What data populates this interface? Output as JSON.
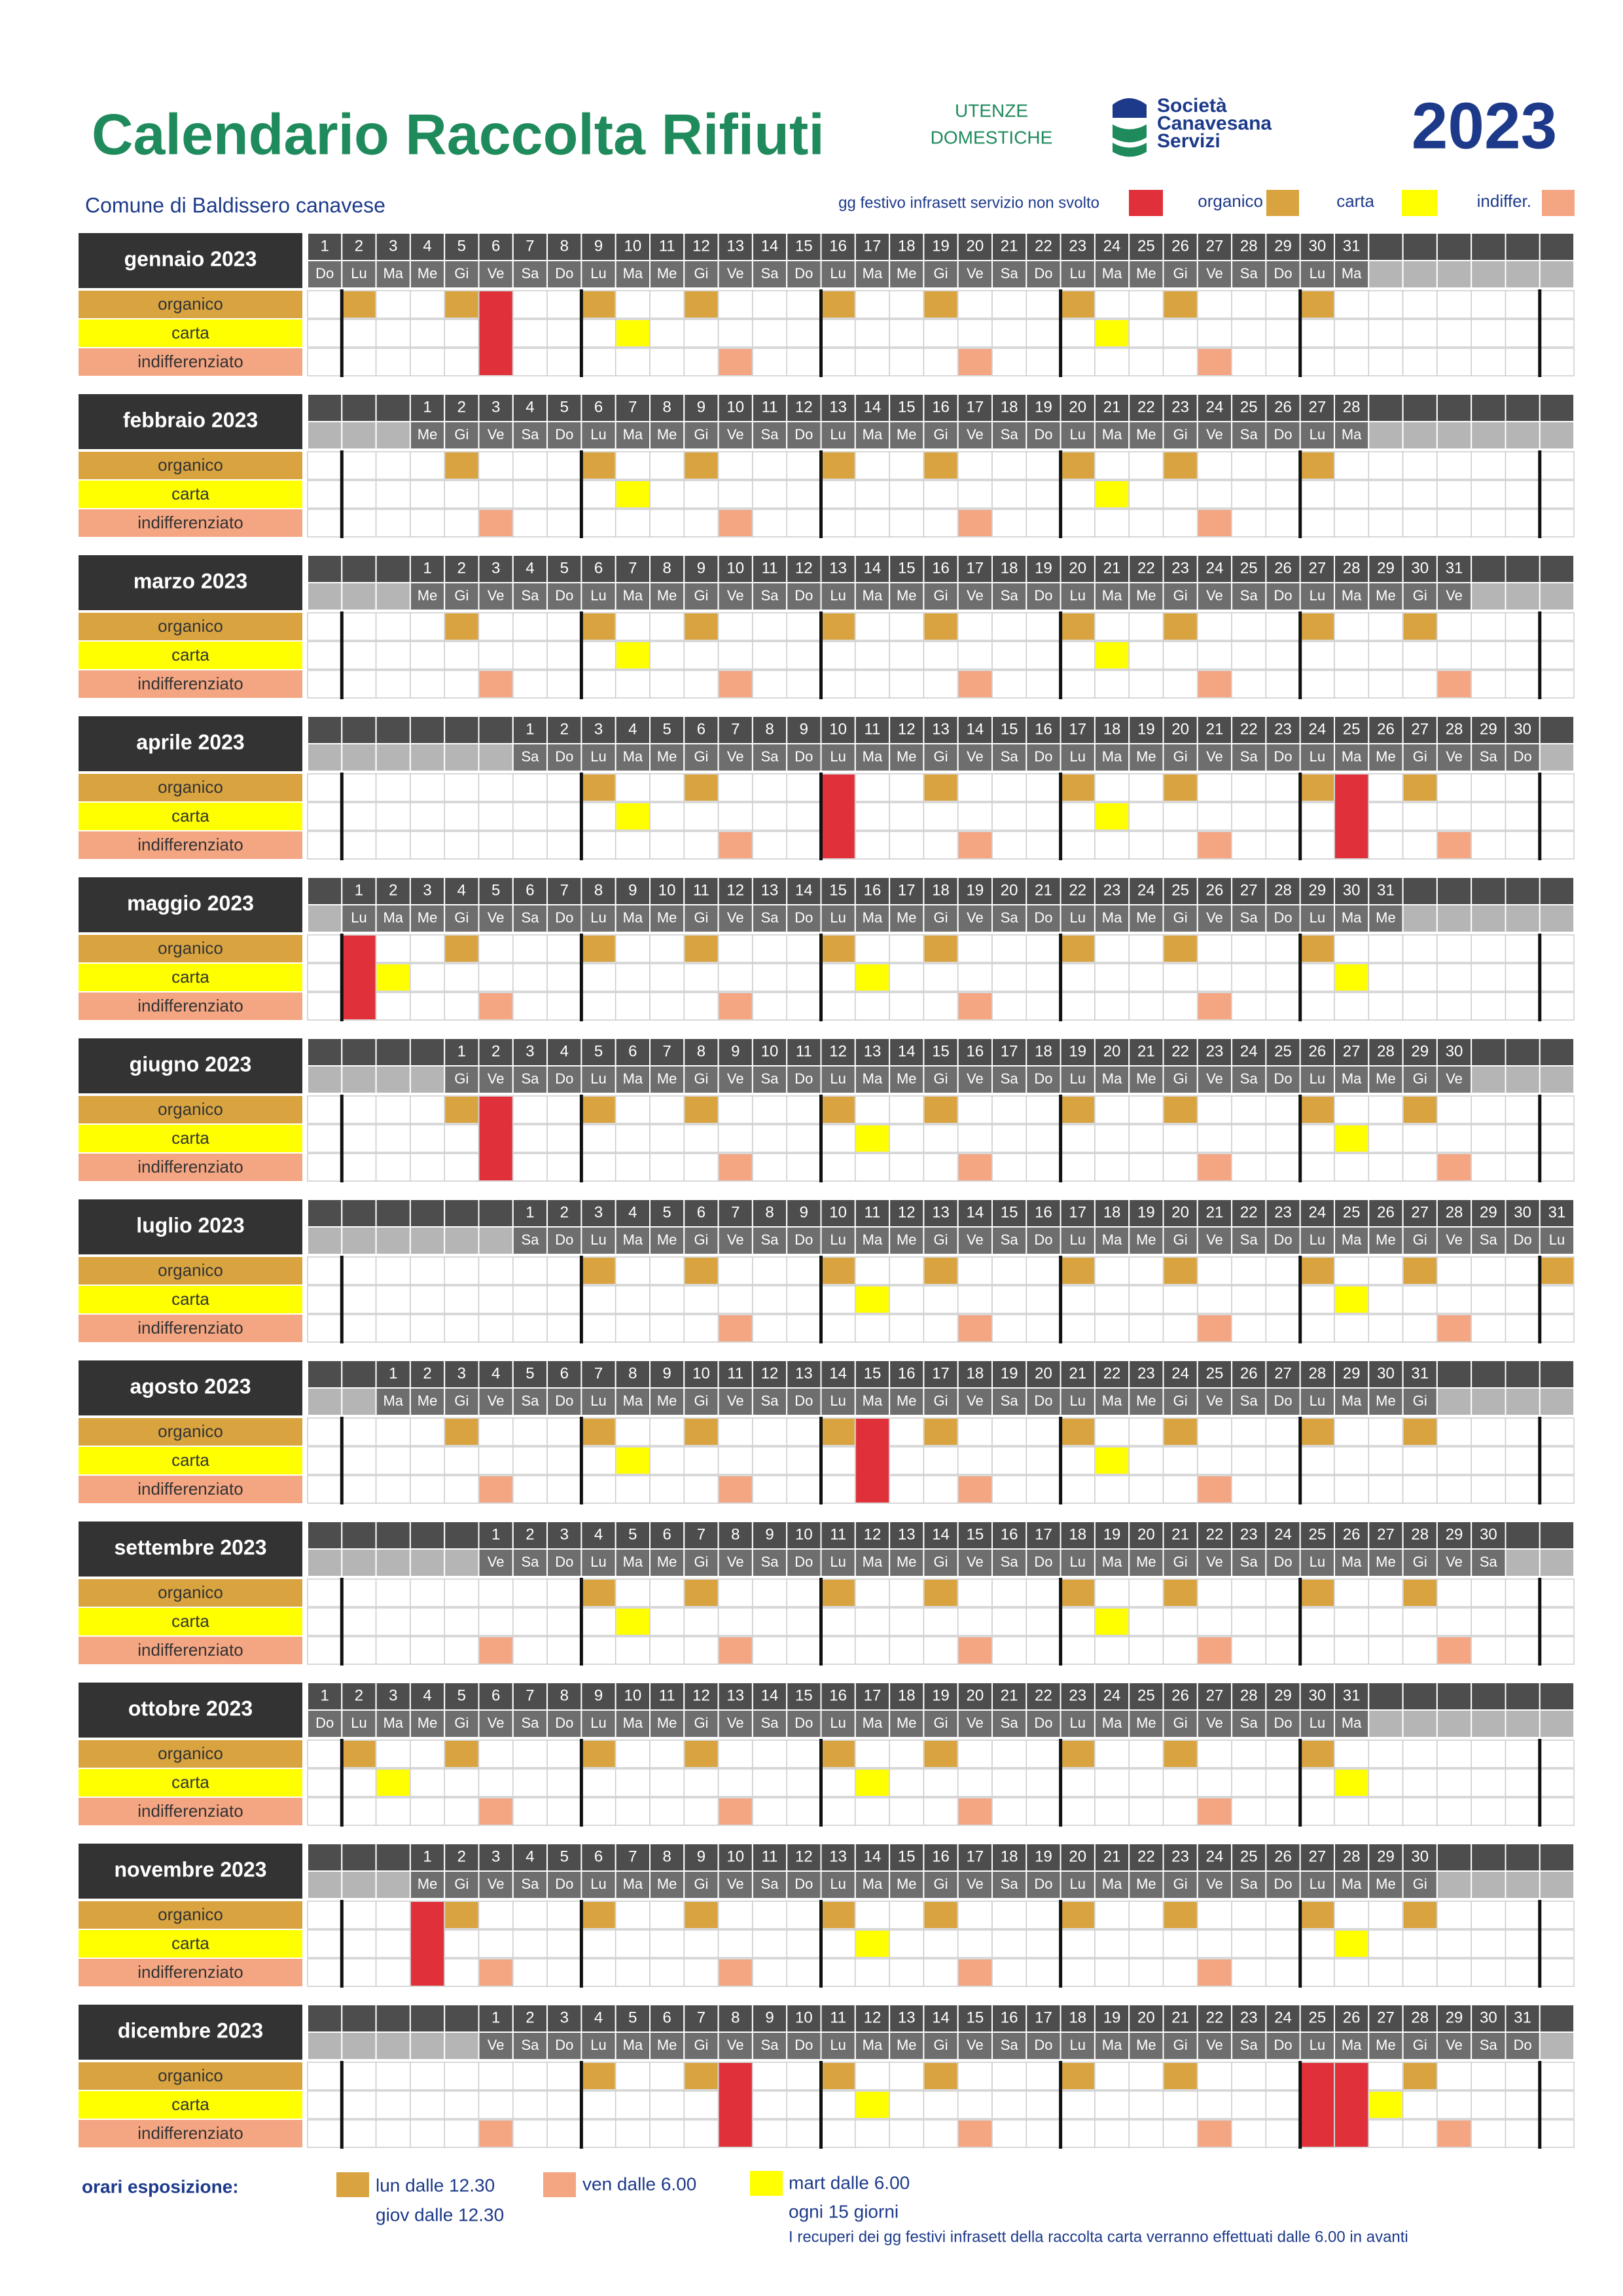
{
  "header": {
    "title": "Calendario Raccolta  Rifiuti",
    "audience": [
      "UTENZE",
      "DOMESTICHE"
    ],
    "company": [
      "Società",
      "Canavesana",
      "Servizi"
    ],
    "year": "2023",
    "town": "Comune di Baldissero canavese",
    "legend": {
      "festivo": "gg festivo infrasett servizio non svolto",
      "organico": "organico",
      "carta": "carta",
      "indifferenziato": "indiffer."
    }
  },
  "day_numbers": [
    1,
    2,
    3,
    4,
    5,
    6,
    7,
    8,
    9,
    10,
    11,
    12,
    13,
    14,
    15,
    16,
    17,
    18,
    19,
    20,
    21,
    22,
    23,
    24,
    25,
    26,
    27,
    28,
    29,
    30,
    31
  ],
  "weekdays": [
    "Do",
    "Lu",
    "Ma",
    "Me",
    "Gi",
    "Ve",
    "Sa"
  ],
  "rows": [
    "organico",
    "carta",
    "indifferenziato"
  ],
  "months": [
    {
      "name": "gennaio 2023",
      "organico": [
        2,
        5,
        9,
        12,
        16,
        19,
        23,
        26,
        30
      ],
      "carta": [
        10,
        24
      ],
      "indifferenziato": [
        13,
        20,
        27
      ],
      "festivo": [
        6
      ]
    },
    {
      "name": "febbraio 2023",
      "organico": [
        2,
        6,
        9,
        13,
        16,
        20,
        23,
        27
      ],
      "carta": [
        7,
        21
      ],
      "indifferenziato": [
        3,
        10,
        17,
        24
      ],
      "festivo": []
    },
    {
      "name": "marzo 2023",
      "organico": [
        2,
        6,
        9,
        13,
        16,
        20,
        23,
        27,
        30
      ],
      "carta": [
        7,
        21
      ],
      "indifferenziato": [
        3,
        10,
        17,
        24,
        31
      ],
      "festivo": []
    },
    {
      "name": "aprile 2023",
      "organico": [
        3,
        6,
        13,
        17,
        20,
        24,
        27
      ],
      "carta": [
        4,
        18
      ],
      "indifferenziato": [
        7,
        14,
        21,
        28
      ],
      "festivo": [
        10,
        25
      ]
    },
    {
      "name": "maggio 2023",
      "organico": [
        4,
        8,
        11,
        15,
        18,
        22,
        25,
        29
      ],
      "carta": [
        2,
        16,
        30
      ],
      "indifferenziato": [
        5,
        12,
        19,
        26
      ],
      "festivo": [
        1
      ]
    },
    {
      "name": "giugno 2023",
      "organico": [
        1,
        5,
        8,
        12,
        15,
        19,
        22,
        26,
        29
      ],
      "carta": [
        13,
        27
      ],
      "indifferenziato": [
        9,
        16,
        23,
        30
      ],
      "festivo": [
        2
      ]
    },
    {
      "name": "luglio 2023",
      "organico": [
        3,
        6,
        10,
        13,
        17,
        20,
        24,
        27,
        31
      ],
      "carta": [
        11,
        25
      ],
      "indifferenziato": [
        7,
        14,
        21,
        28
      ],
      "festivo": []
    },
    {
      "name": "agosto 2023",
      "organico": [
        3,
        7,
        10,
        14,
        17,
        21,
        24,
        28,
        31
      ],
      "carta": [
        8,
        22
      ],
      "indifferenziato": [
        4,
        11,
        18,
        25
      ],
      "festivo": [
        15
      ]
    },
    {
      "name": "settembre 2023",
      "organico": [
        4,
        7,
        11,
        14,
        18,
        21,
        25,
        28
      ],
      "carta": [
        5,
        19
      ],
      "indifferenziato": [
        1,
        8,
        15,
        22,
        29
      ],
      "festivo": []
    },
    {
      "name": "ottobre 2023",
      "organico": [
        2,
        5,
        9,
        12,
        16,
        19,
        23,
        26,
        30
      ],
      "carta": [
        3,
        17,
        31
      ],
      "indifferenziato": [
        6,
        13,
        20,
        27
      ],
      "festivo": []
    },
    {
      "name": "novembre 2023",
      "organico": [
        2,
        6,
        9,
        13,
        16,
        20,
        23,
        27,
        30
      ],
      "carta": [
        14,
        28
      ],
      "indifferenziato": [
        3,
        10,
        17,
        24
      ],
      "festivo": [
        1
      ]
    },
    {
      "name": "dicembre 2023",
      "organico": [
        4,
        7,
        11,
        14,
        18,
        21,
        28
      ],
      "carta": [
        12,
        27
      ],
      "indifferenziato": [
        1,
        15,
        22,
        29
      ],
      "festivo": [
        8,
        25,
        26
      ]
    }
  ],
  "footer": {
    "label": "orari esposizione:",
    "organico": [
      "lun dalle 12.30",
      "giov dalle 12.30"
    ],
    "indifferenziato": "ven dalle 6.00",
    "carta": [
      "mart dalle 6.00",
      "ogni 15 giorni"
    ],
    "note": "I recuperi dei gg festivi infrasett della raccolta carta verranno effettuati dalle 6.00 in avanti"
  }
}
